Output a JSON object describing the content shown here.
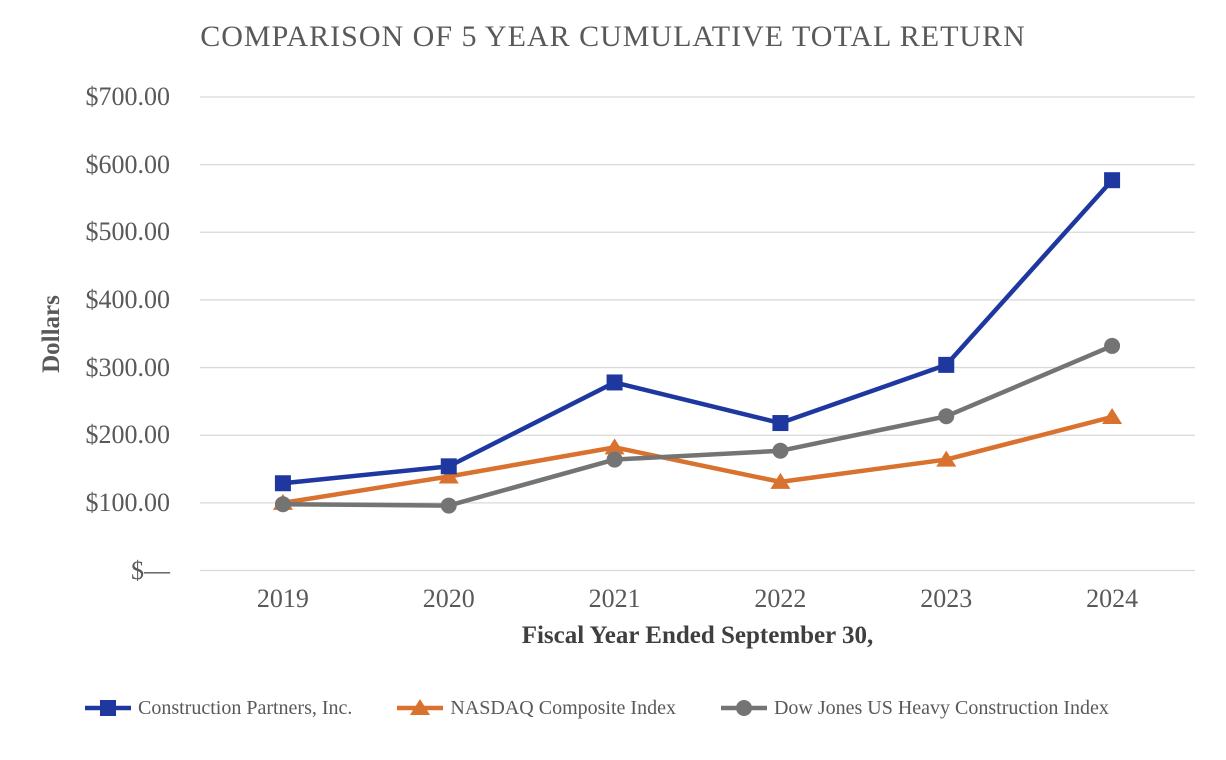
{
  "chart_data": {
    "type": "line",
    "title": "COMPARISON OF 5 YEAR CUMULATIVE TOTAL RETURN",
    "xlabel": "Fiscal Year Ended September 30,",
    "ylabel": "Dollars",
    "x": [
      "2019",
      "2020",
      "2021",
      "2022",
      "2023",
      "2024"
    ],
    "ylim": [
      0,
      700
    ],
    "ytick_interval": 100,
    "ytick_labels_top_down": [
      "$700.00",
      "$600.00",
      "$500.00",
      "$400.00",
      "$300.00",
      "$200.00",
      "$100.00",
      "$—"
    ],
    "grid": true,
    "legend_position": "bottom",
    "series": [
      {
        "name": "Construction Partners, Inc.",
        "marker": "square",
        "color": "#1e38a0",
        "values": [
          129,
          154,
          278,
          218,
          304,
          577
        ]
      },
      {
        "name": "NASDAQ Composite Index",
        "marker": "triangle",
        "color": "#d9712f",
        "values": [
          100,
          139,
          182,
          131,
          164,
          227
        ]
      },
      {
        "name": "Dow Jones US Heavy Construction Index",
        "marker": "circle",
        "color": "#747474",
        "values": [
          98,
          96,
          164,
          177,
          228,
          332
        ]
      }
    ],
    "colors": {
      "axis_text": "#595959",
      "gridline": "#d9d9d9"
    }
  }
}
